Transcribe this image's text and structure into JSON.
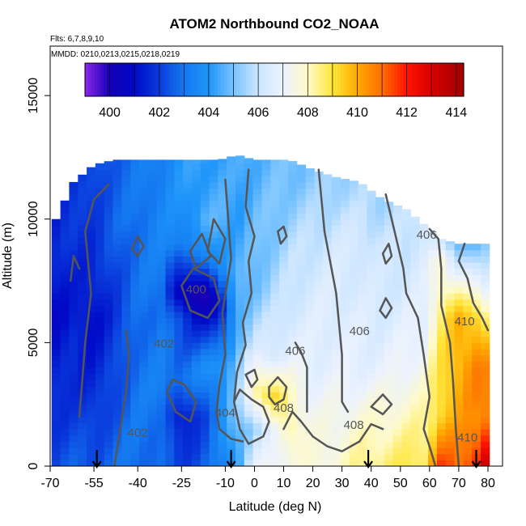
{
  "chart_data": {
    "type": "heatmap",
    "title": "ATOM2 Northbound CO2_NOAA",
    "subtitle_flights": "Flts: 6,7,8,9,10",
    "subtitle_dates": "MMDD: 0210,0213,0215,0218,0219",
    "xlabel": "Latitude (deg N)",
    "ylabel": "Altitude (m)",
    "xlim": [
      -70,
      85
    ],
    "ylim": [
      0,
      17000
    ],
    "x_ticks": [
      -70,
      -55,
      -40,
      -25,
      -10,
      0,
      10,
      20,
      30,
      40,
      50,
      60,
      70,
      80
    ],
    "y_ticks": [
      0,
      5000,
      10000,
      15000
    ],
    "colorbar": {
      "range": [
        399,
        414.3
      ],
      "tick_values": [
        400,
        402,
        404,
        406,
        408,
        410,
        412,
        414
      ]
    },
    "arrows_latitude": [
      -54,
      -8,
      39,
      76
    ],
    "contour_labels": [
      {
        "text": "400",
        "lat": -20,
        "alt": 7000
      },
      {
        "text": "402",
        "lat": -31,
        "alt": 4800
      },
      {
        "text": "402",
        "lat": -40,
        "alt": 1200
      },
      {
        "text": "404",
        "lat": -10,
        "alt": 2000
      },
      {
        "text": "408",
        "lat": 10,
        "alt": 2200
      },
      {
        "text": "406",
        "lat": 14,
        "alt": 4500
      },
      {
        "text": "406",
        "lat": 36,
        "alt": 5300
      },
      {
        "text": "408",
        "lat": 34,
        "alt": 1500
      },
      {
        "text": "406",
        "lat": 59,
        "alt": 9200
      },
      {
        "text": "410",
        "lat": 72,
        "alt": 5700
      },
      {
        "text": "410",
        "lat": 73,
        "alt": 1000
      }
    ],
    "column_profiles": [
      {
        "lat": -68,
        "top": 10000,
        "levels": [
          [
            0,
            402.3
          ],
          [
            3000,
            401.5
          ],
          [
            6000,
            401.0
          ],
          [
            9000,
            401.5
          ]
        ]
      },
      {
        "lat": -62,
        "top": 11500,
        "levels": [
          [
            0,
            402.5
          ],
          [
            3000,
            401.8
          ],
          [
            6000,
            401.3
          ],
          [
            9000,
            401.8
          ]
        ]
      },
      {
        "lat": -55,
        "top": 12200,
        "levels": [
          [
            0,
            402.4
          ],
          [
            3000,
            401.6
          ],
          [
            6000,
            401.0
          ],
          [
            10000,
            402.0
          ]
        ]
      },
      {
        "lat": -48,
        "top": 12400,
        "levels": [
          [
            0,
            402.8
          ],
          [
            3000,
            402.2
          ],
          [
            6000,
            401.8
          ],
          [
            10000,
            402.6
          ]
        ]
      },
      {
        "lat": -40,
        "top": 12400,
        "levels": [
          [
            0,
            403.0
          ],
          [
            3000,
            403.0
          ],
          [
            6000,
            402.8
          ],
          [
            10000,
            403.0
          ]
        ]
      },
      {
        "lat": -32,
        "top": 12400,
        "levels": [
          [
            0,
            402.6
          ],
          [
            3000,
            403.2
          ],
          [
            6000,
            403.0
          ],
          [
            10000,
            403.4
          ]
        ]
      },
      {
        "lat": -25,
        "top": 12400,
        "levels": [
          [
            0,
            402.0
          ],
          [
            2000,
            401.0
          ],
          [
            3500,
            403.0
          ],
          [
            6000,
            402.0
          ],
          [
            7000,
            400.0
          ],
          [
            9000,
            403.5
          ],
          [
            12000,
            404.0
          ]
        ]
      },
      {
        "lat": -18,
        "top": 12400,
        "levels": [
          [
            0,
            402.5
          ],
          [
            2000,
            402.0
          ],
          [
            4000,
            403.5
          ],
          [
            6000,
            401.0
          ],
          [
            7000,
            399.8
          ],
          [
            8500,
            403.0
          ],
          [
            10000,
            404.5
          ],
          [
            12000,
            404.2
          ]
        ]
      },
      {
        "lat": -12,
        "top": 12400,
        "levels": [
          [
            0,
            403.0
          ],
          [
            2000,
            403.5
          ],
          [
            4000,
            404.0
          ],
          [
            6500,
            400.5
          ],
          [
            8000,
            403.8
          ],
          [
            10000,
            404.6
          ],
          [
            12000,
            404.3
          ]
        ]
      },
      {
        "lat": -6,
        "top": 12600,
        "levels": [
          [
            0,
            404.2
          ],
          [
            2000,
            405.0
          ],
          [
            4000,
            405.0
          ],
          [
            6000,
            404.5
          ],
          [
            8000,
            404.4
          ],
          [
            10000,
            404.2
          ],
          [
            12000,
            404.3
          ]
        ]
      },
      {
        "lat": 0,
        "top": 12400,
        "levels": [
          [
            0,
            406.8
          ],
          [
            1500,
            405.5
          ],
          [
            3000,
            408.5
          ],
          [
            5000,
            406.0
          ],
          [
            7000,
            405.0
          ],
          [
            9000,
            404.8
          ],
          [
            12000,
            404.6
          ]
        ]
      },
      {
        "lat": 6,
        "top": 12400,
        "levels": [
          [
            0,
            407.3
          ],
          [
            1500,
            406.5
          ],
          [
            2800,
            409.5
          ],
          [
            4500,
            406.5
          ],
          [
            7000,
            405.5
          ],
          [
            9000,
            405.2
          ],
          [
            12000,
            404.8
          ]
        ]
      },
      {
        "lat": 12,
        "top": 12400,
        "levels": [
          [
            0,
            407.5
          ],
          [
            1500,
            408.5
          ],
          [
            2800,
            408.0
          ],
          [
            4500,
            406.8
          ],
          [
            7000,
            406.0
          ],
          [
            9000,
            405.6
          ],
          [
            12000,
            404.9
          ]
        ]
      },
      {
        "lat": 20,
        "top": 12000,
        "levels": [
          [
            0,
            407.6
          ],
          [
            2000,
            407.2
          ],
          [
            4000,
            406.8
          ],
          [
            7000,
            406.4
          ],
          [
            9000,
            406.0
          ],
          [
            11500,
            405.2
          ]
        ]
      },
      {
        "lat": 28,
        "top": 11700,
        "levels": [
          [
            0,
            407.8
          ],
          [
            2000,
            407.4
          ],
          [
            4000,
            406.8
          ],
          [
            7000,
            406.5
          ],
          [
            9000,
            406.2
          ],
          [
            11500,
            405.5
          ]
        ]
      },
      {
        "lat": 36,
        "top": 11500,
        "levels": [
          [
            0,
            408.4
          ],
          [
            2000,
            407.6
          ],
          [
            4000,
            406.8
          ],
          [
            7000,
            406.4
          ],
          [
            9000,
            406.3
          ],
          [
            11000,
            405.6
          ]
        ]
      },
      {
        "lat": 44,
        "top": 10800,
        "levels": [
          [
            0,
            408.6
          ],
          [
            2000,
            407.8
          ],
          [
            4000,
            406.8
          ],
          [
            7000,
            406.2
          ],
          [
            9000,
            406.0
          ],
          [
            10500,
            405.6
          ]
        ]
      },
      {
        "lat": 52,
        "top": 10400,
        "levels": [
          [
            0,
            408.8
          ],
          [
            2000,
            408.0
          ],
          [
            4000,
            407.2
          ],
          [
            7000,
            406.4
          ],
          [
            9000,
            406.0
          ],
          [
            10000,
            405.8
          ]
        ]
      },
      {
        "lat": 58,
        "top": 9800,
        "levels": [
          [
            0,
            409.0
          ],
          [
            2000,
            408.2
          ],
          [
            4000,
            407.4
          ],
          [
            7000,
            406.6
          ],
          [
            9000,
            406.4
          ]
        ]
      },
      {
        "lat": 64,
        "top": 9200,
        "levels": [
          [
            0,
            411.5
          ],
          [
            2000,
            409.5
          ],
          [
            4000,
            409.0
          ],
          [
            6500,
            408.5
          ],
          [
            8500,
            407.5
          ],
          [
            9000,
            406.0
          ]
        ]
      },
      {
        "lat": 70,
        "top": 9000,
        "levels": [
          [
            0,
            411.0
          ],
          [
            2000,
            410.0
          ],
          [
            4000,
            410.0
          ],
          [
            6000,
            409.8
          ],
          [
            8000,
            406.5
          ],
          [
            9000,
            405.0
          ]
        ]
      },
      {
        "lat": 76,
        "top": 9000,
        "levels": [
          [
            0,
            412.0
          ],
          [
            2000,
            410.5
          ],
          [
            4000,
            410.6
          ],
          [
            6000,
            409.5
          ],
          [
            8000,
            406.0
          ],
          [
            9000,
            404.5
          ]
        ]
      },
      {
        "lat": 80,
        "top": 9000,
        "levels": [
          [
            0,
            413.5
          ],
          [
            2000,
            411.0
          ],
          [
            4000,
            410.4
          ],
          [
            6000,
            408.5
          ],
          [
            8000,
            406.0
          ],
          [
            9000,
            405.0
          ]
        ]
      }
    ]
  }
}
